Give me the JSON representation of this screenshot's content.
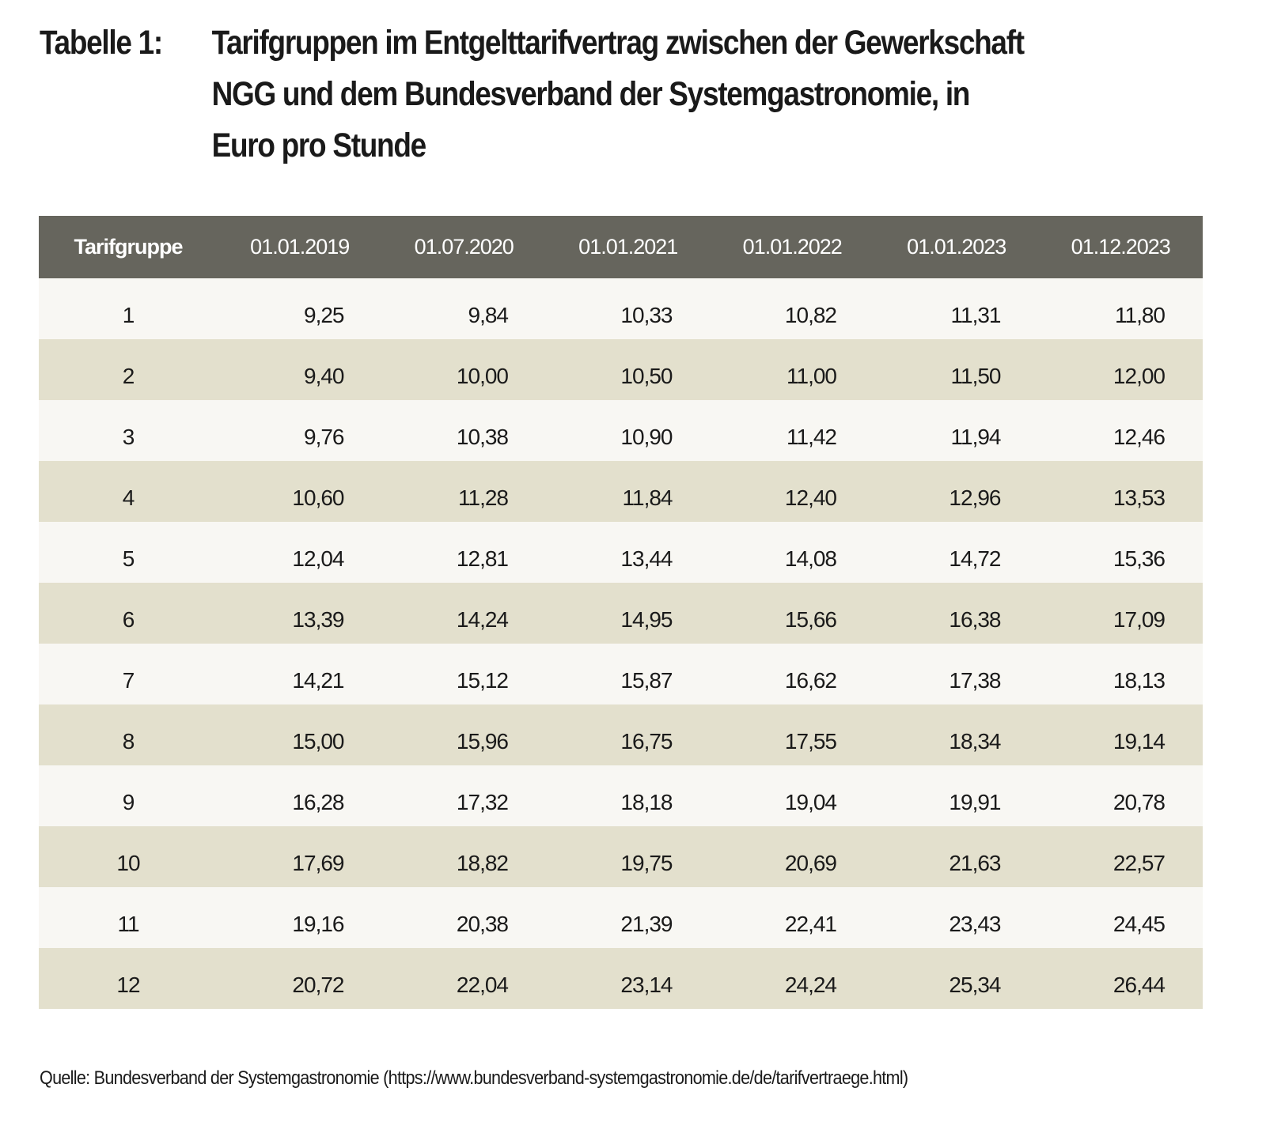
{
  "title": {
    "label": "Tabelle 1:",
    "text": "Tarifgruppen im Entgelttarifvertrag zwischen der Gewerkschaft NGG und dem Bundesverband der Systemgastronomie, in Euro pro Stunde"
  },
  "colors": {
    "header_bg": "#66655d",
    "row_light": "#f8f7f3",
    "row_dark": "#e3e0cd"
  },
  "table": {
    "headers": [
      "Tarifgruppe",
      "01.01.2019",
      "01.07.2020",
      "01.01.2021",
      "01.01.2022",
      "01.01.2023",
      "01.12.2023"
    ],
    "rows": [
      [
        "1",
        "9,25",
        "9,84",
        "10,33",
        "10,82",
        "11,31",
        "11,80"
      ],
      [
        "2",
        "9,40",
        "10,00",
        "10,50",
        "11,00",
        "11,50",
        "12,00"
      ],
      [
        "3",
        "9,76",
        "10,38",
        "10,90",
        "11,42",
        "11,94",
        "12,46"
      ],
      [
        "4",
        "10,60",
        "11,28",
        "11,84",
        "12,40",
        "12,96",
        "13,53"
      ],
      [
        "5",
        "12,04",
        "12,81",
        "13,44",
        "14,08",
        "14,72",
        "15,36"
      ],
      [
        "6",
        "13,39",
        "14,24",
        "14,95",
        "15,66",
        "16,38",
        "17,09"
      ],
      [
        "7",
        "14,21",
        "15,12",
        "15,87",
        "16,62",
        "17,38",
        "18,13"
      ],
      [
        "8",
        "15,00",
        "15,96",
        "16,75",
        "17,55",
        "18,34",
        "19,14"
      ],
      [
        "9",
        "16,28",
        "17,32",
        "18,18",
        "19,04",
        "19,91",
        "20,78"
      ],
      [
        "10",
        "17,69",
        "18,82",
        "19,75",
        "20,69",
        "21,63",
        "22,57"
      ],
      [
        "11",
        "19,16",
        "20,38",
        "21,39",
        "22,41",
        "23,43",
        "24,45"
      ],
      [
        "12",
        "20,72",
        "22,04",
        "23,14",
        "24,24",
        "25,34",
        "26,44"
      ]
    ]
  },
  "source": "Quelle: Bundesverband der Systemgastronomie (https://www.bundesverband-systemgastronomie.de/de/tarifvertraege.html)"
}
